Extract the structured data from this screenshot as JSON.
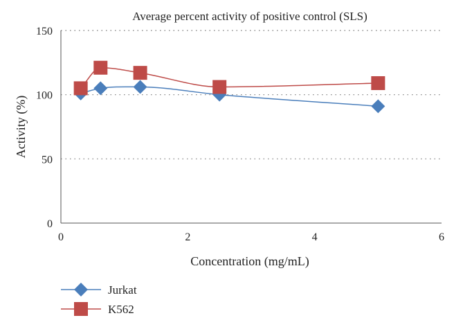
{
  "chart_data": {
    "type": "line",
    "title": "Average percent activity of positive control (SLS)",
    "xlabel": "Concentration (mg/mL)",
    "ylabel": "Activity (%)",
    "xlim": [
      0,
      6
    ],
    "ylim": [
      0,
      150
    ],
    "xticks": [
      0,
      2,
      4,
      6
    ],
    "yticks": [
      0,
      50,
      100,
      150
    ],
    "grid": "horizontal dotted",
    "legend_position": "bottom-left",
    "series": [
      {
        "name": "Jurkat",
        "color": "#4a7ebb",
        "marker": "diamond",
        "x": [
          0.3125,
          0.625,
          1.25,
          2.5,
          5
        ],
        "y": [
          101,
          105,
          106,
          100,
          91
        ]
      },
      {
        "name": "K562",
        "color": "#be4b48",
        "marker": "square",
        "x": [
          0.3125,
          0.625,
          1.25,
          2.5,
          5
        ],
        "y": [
          105,
          121,
          117,
          106,
          109
        ]
      }
    ]
  }
}
